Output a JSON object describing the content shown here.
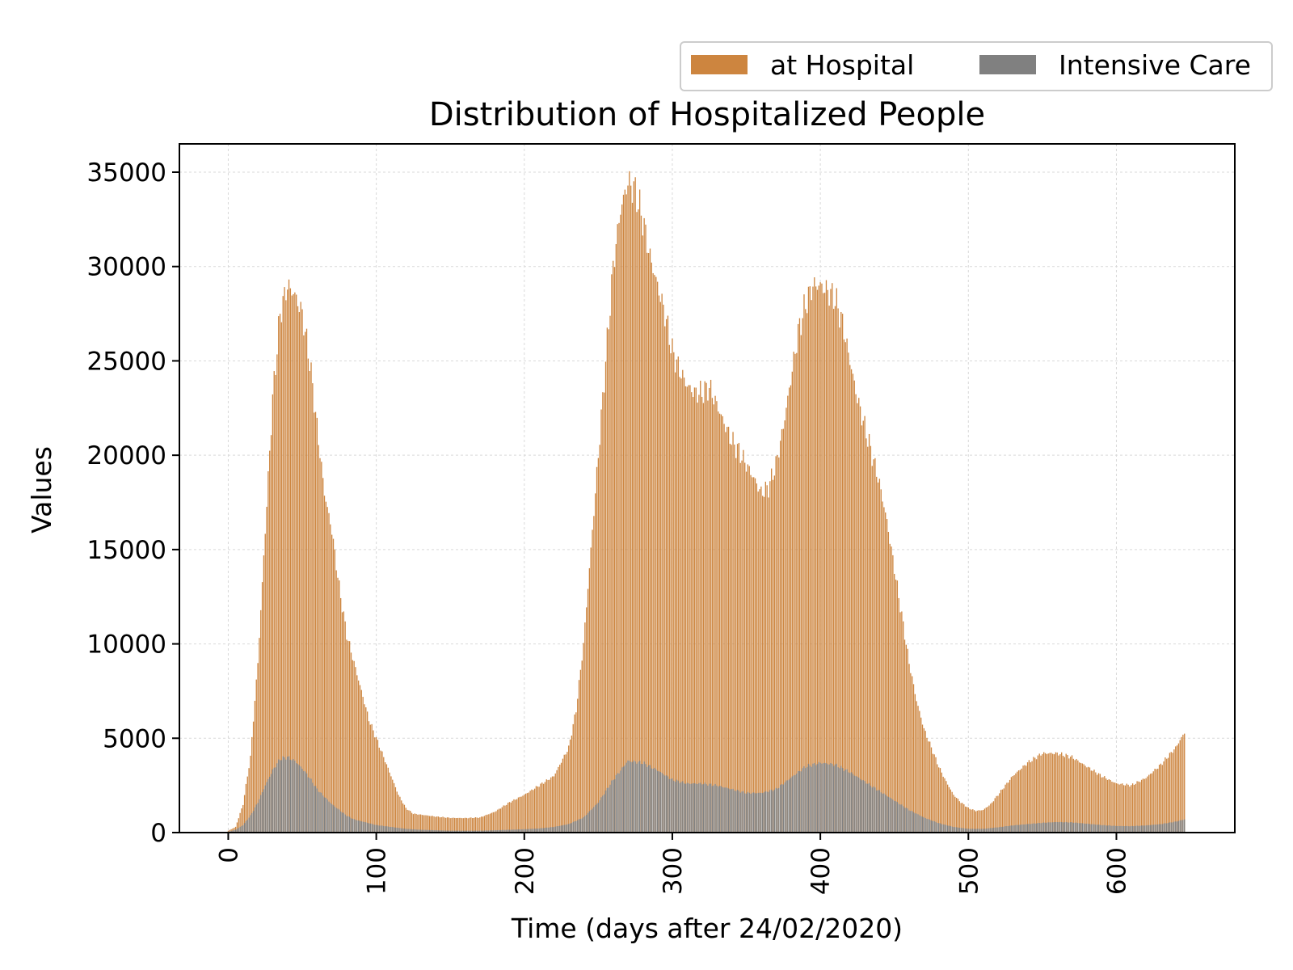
{
  "chart_data": {
    "type": "bar",
    "title": "Distribution of Hospitalized People",
    "xlabel": "Time (days after 24/02/2020)",
    "ylabel": "Values",
    "xlim": [
      -33,
      680
    ],
    "ylim": [
      0,
      36500
    ],
    "xticks": [
      0,
      100,
      200,
      300,
      400,
      500,
      600
    ],
    "yticks": [
      0,
      5000,
      10000,
      15000,
      20000,
      25000,
      30000,
      35000
    ],
    "grid": true,
    "legend_position": "top-right (above plot)",
    "x_range_days": [
      0,
      646
    ],
    "series": [
      {
        "name": "at Hospital",
        "color": "#cd853f",
        "keyframes": [
          [
            0,
            100
          ],
          [
            5,
            300
          ],
          [
            10,
            1500
          ],
          [
            15,
            4000
          ],
          [
            20,
            9000
          ],
          [
            25,
            16000
          ],
          [
            30,
            23000
          ],
          [
            35,
            27500
          ],
          [
            40,
            29000
          ],
          [
            45,
            28500
          ],
          [
            50,
            27500
          ],
          [
            55,
            25000
          ],
          [
            60,
            21500
          ],
          [
            65,
            18000
          ],
          [
            70,
            16000
          ],
          [
            75,
            13000
          ],
          [
            80,
            10500
          ],
          [
            85,
            9000
          ],
          [
            90,
            7500
          ],
          [
            95,
            6000
          ],
          [
            100,
            5000
          ],
          [
            105,
            4000
          ],
          [
            110,
            3000
          ],
          [
            115,
            2000
          ],
          [
            120,
            1300
          ],
          [
            125,
            1000
          ],
          [
            130,
            950
          ],
          [
            140,
            850
          ],
          [
            150,
            780
          ],
          [
            160,
            770
          ],
          [
            170,
            800
          ],
          [
            180,
            1100
          ],
          [
            190,
            1600
          ],
          [
            200,
            2000
          ],
          [
            210,
            2500
          ],
          [
            220,
            3000
          ],
          [
            230,
            4500
          ],
          [
            235,
            6500
          ],
          [
            240,
            10000
          ],
          [
            245,
            15000
          ],
          [
            250,
            20000
          ],
          [
            255,
            25000
          ],
          [
            260,
            30000
          ],
          [
            265,
            33000
          ],
          [
            270,
            34500
          ],
          [
            275,
            34000
          ],
          [
            280,
            32500
          ],
          [
            285,
            30500
          ],
          [
            290,
            29000
          ],
          [
            295,
            27500
          ],
          [
            300,
            25500
          ],
          [
            305,
            24500
          ],
          [
            310,
            23700
          ],
          [
            315,
            23300
          ],
          [
            320,
            23300
          ],
          [
            325,
            23600
          ],
          [
            330,
            22700
          ],
          [
            335,
            21700
          ],
          [
            340,
            20800
          ],
          [
            345,
            20200
          ],
          [
            350,
            19500
          ],
          [
            355,
            18800
          ],
          [
            360,
            18000
          ],
          [
            365,
            18300
          ],
          [
            370,
            19500
          ],
          [
            375,
            21500
          ],
          [
            380,
            24000
          ],
          [
            385,
            26500
          ],
          [
            390,
            28000
          ],
          [
            395,
            29000
          ],
          [
            400,
            29000
          ],
          [
            405,
            28700
          ],
          [
            410,
            28300
          ],
          [
            415,
            27000
          ],
          [
            420,
            25000
          ],
          [
            425,
            23000
          ],
          [
            430,
            21500
          ],
          [
            435,
            20000
          ],
          [
            440,
            18500
          ],
          [
            445,
            16500
          ],
          [
            450,
            14000
          ],
          [
            455,
            11500
          ],
          [
            460,
            9000
          ],
          [
            465,
            7000
          ],
          [
            470,
            5500
          ],
          [
            475,
            4500
          ],
          [
            480,
            3500
          ],
          [
            485,
            2700
          ],
          [
            490,
            2000
          ],
          [
            495,
            1600
          ],
          [
            500,
            1300
          ],
          [
            505,
            1150
          ],
          [
            510,
            1200
          ],
          [
            515,
            1500
          ],
          [
            520,
            2000
          ],
          [
            525,
            2500
          ],
          [
            530,
            3000
          ],
          [
            540,
            3700
          ],
          [
            550,
            4200
          ],
          [
            560,
            4200
          ],
          [
            570,
            4000
          ],
          [
            580,
            3500
          ],
          [
            590,
            3000
          ],
          [
            600,
            2600
          ],
          [
            610,
            2500
          ],
          [
            620,
            2900
          ],
          [
            630,
            3600
          ],
          [
            640,
            4500
          ],
          [
            646,
            5300
          ]
        ]
      },
      {
        "name": "Intensive Care",
        "color": "#808080",
        "keyframes": [
          [
            0,
            50
          ],
          [
            5,
            150
          ],
          [
            10,
            400
          ],
          [
            15,
            900
          ],
          [
            20,
            1600
          ],
          [
            25,
            2500
          ],
          [
            30,
            3300
          ],
          [
            35,
            3900
          ],
          [
            40,
            4000
          ],
          [
            45,
            3800
          ],
          [
            50,
            3400
          ],
          [
            55,
            2900
          ],
          [
            60,
            2300
          ],
          [
            65,
            1900
          ],
          [
            70,
            1500
          ],
          [
            75,
            1200
          ],
          [
            80,
            900
          ],
          [
            85,
            700
          ],
          [
            90,
            600
          ],
          [
            95,
            500
          ],
          [
            100,
            400
          ],
          [
            110,
            300
          ],
          [
            120,
            200
          ],
          [
            130,
            150
          ],
          [
            150,
            100
          ],
          [
            170,
            100
          ],
          [
            190,
            150
          ],
          [
            200,
            180
          ],
          [
            210,
            220
          ],
          [
            220,
            300
          ],
          [
            230,
            450
          ],
          [
            240,
            800
          ],
          [
            250,
            1600
          ],
          [
            260,
            2800
          ],
          [
            270,
            3800
          ],
          [
            280,
            3700
          ],
          [
            290,
            3300
          ],
          [
            300,
            2800
          ],
          [
            310,
            2600
          ],
          [
            320,
            2600
          ],
          [
            330,
            2500
          ],
          [
            340,
            2300
          ],
          [
            350,
            2100
          ],
          [
            360,
            2100
          ],
          [
            370,
            2300
          ],
          [
            380,
            2900
          ],
          [
            390,
            3500
          ],
          [
            400,
            3700
          ],
          [
            410,
            3600
          ],
          [
            420,
            3200
          ],
          [
            430,
            2700
          ],
          [
            440,
            2200
          ],
          [
            450,
            1700
          ],
          [
            460,
            1200
          ],
          [
            470,
            800
          ],
          [
            480,
            500
          ],
          [
            490,
            300
          ],
          [
            500,
            200
          ],
          [
            510,
            200
          ],
          [
            520,
            280
          ],
          [
            530,
            380
          ],
          [
            540,
            450
          ],
          [
            550,
            520
          ],
          [
            560,
            560
          ],
          [
            570,
            540
          ],
          [
            580,
            470
          ],
          [
            590,
            400
          ],
          [
            600,
            350
          ],
          [
            610,
            340
          ],
          [
            620,
            380
          ],
          [
            630,
            450
          ],
          [
            640,
            580
          ],
          [
            646,
            700
          ]
        ]
      }
    ]
  }
}
